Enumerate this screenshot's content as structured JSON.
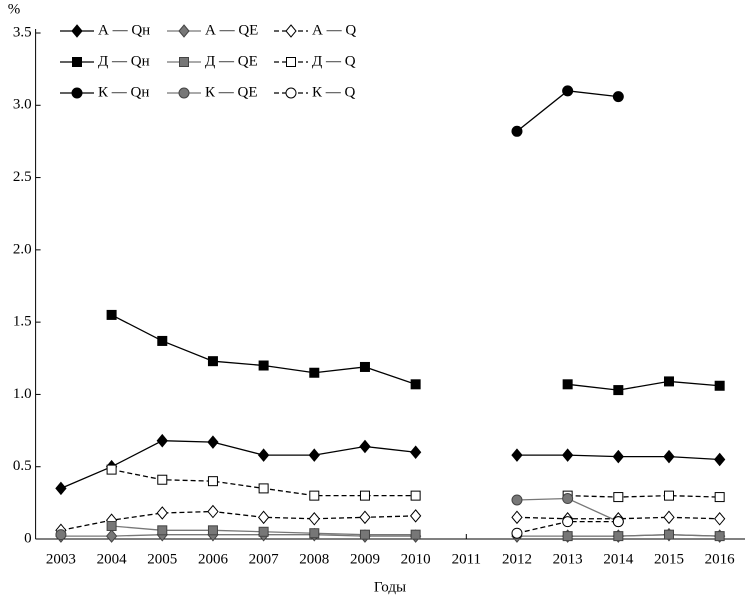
{
  "chart_data": {
    "type": "line",
    "y_label": "%",
    "x_label": "Годы",
    "x": [
      2003,
      2004,
      2005,
      2006,
      2007,
      2008,
      2009,
      2010,
      2011,
      2012,
      2013,
      2014,
      2015,
      2016
    ],
    "xlim": [
      2002.5,
      2016.5
    ],
    "xticks": [
      2003,
      2004,
      2005,
      2006,
      2007,
      2008,
      2009,
      2010,
      2011,
      2012,
      2013,
      2014,
      2015,
      2016
    ],
    "ylim": [
      0,
      3.5
    ],
    "yticks": [
      0,
      0.5,
      {
        "value": 1,
        "label": "1.0"
      },
      1.5,
      {
        "value": 2,
        "label": "2.0"
      },
      2.5,
      {
        "value": 3,
        "label": "3.0"
      },
      3.5
    ],
    "legend": "upper left",
    "series": [
      {
        "name": "А — Qн",
        "color": "#000000",
        "marker": "diamond",
        "marker_fill": "#000000",
        "dash": false,
        "values": [
          0.35,
          0.5,
          0.68,
          0.67,
          0.58,
          0.58,
          0.64,
          0.6,
          null,
          0.58,
          0.58,
          0.57,
          0.57,
          0.55
        ]
      },
      {
        "name": "А — QE",
        "color": "#777777",
        "marker": "diamond",
        "marker_fill": "#777777",
        "dash": false,
        "values": [
          0.02,
          0.02,
          0.03,
          0.03,
          0.03,
          0.03,
          0.02,
          0.02,
          null,
          0.02,
          0.02,
          0.02,
          0.03,
          0.02
        ]
      },
      {
        "name": "А — Q",
        "color": "#000000",
        "marker": "diamond",
        "marker_fill": "#ffffff",
        "dash": true,
        "values": [
          0.06,
          0.13,
          0.18,
          0.19,
          0.15,
          0.14,
          0.15,
          0.16,
          null,
          0.15,
          0.14,
          0.14,
          0.15,
          0.14
        ]
      },
      {
        "name": "Д — Qн",
        "color": "#000000",
        "marker": "square",
        "marker_fill": "#000000",
        "dash": false,
        "values": [
          null,
          1.55,
          1.37,
          1.23,
          1.2,
          1.15,
          1.19,
          1.07,
          null,
          null,
          1.07,
          1.03,
          1.09,
          1.06
        ]
      },
      {
        "name": "Д — QE",
        "color": "#777777",
        "marker": "square",
        "marker_fill": "#777777",
        "dash": false,
        "values": [
          null,
          0.09,
          0.06,
          0.06,
          0.05,
          0.04,
          0.03,
          0.03,
          null,
          null,
          0.02,
          0.02,
          0.03,
          0.02
        ]
      },
      {
        "name": "Д — Q",
        "color": "#000000",
        "marker": "square",
        "marker_fill": "#ffffff",
        "dash": true,
        "values": [
          null,
          0.48,
          0.41,
          0.4,
          0.35,
          0.3,
          0.3,
          0.3,
          null,
          null,
          0.3,
          0.29,
          0.3,
          0.29
        ]
      },
      {
        "name": "К — Qн",
        "color": "#000000",
        "marker": "circle",
        "marker_fill": "#000000",
        "dash": false,
        "values": [
          null,
          null,
          null,
          null,
          null,
          null,
          null,
          null,
          null,
          2.82,
          3.1,
          3.06,
          null,
          null
        ]
      },
      {
        "name": "К — QE",
        "color": "#777777",
        "marker": "circle",
        "marker_fill": "#777777",
        "dash": false,
        "values": [
          0.03,
          null,
          null,
          null,
          null,
          null,
          null,
          null,
          null,
          0.27,
          0.28,
          0.12,
          null,
          null
        ]
      },
      {
        "name": "К — Q",
        "color": "#000000",
        "marker": "circle",
        "marker_fill": "#ffffff",
        "dash": true,
        "values": [
          null,
          null,
          null,
          null,
          null,
          null,
          null,
          null,
          null,
          0.04,
          0.12,
          0.12,
          null,
          null
        ]
      }
    ]
  }
}
